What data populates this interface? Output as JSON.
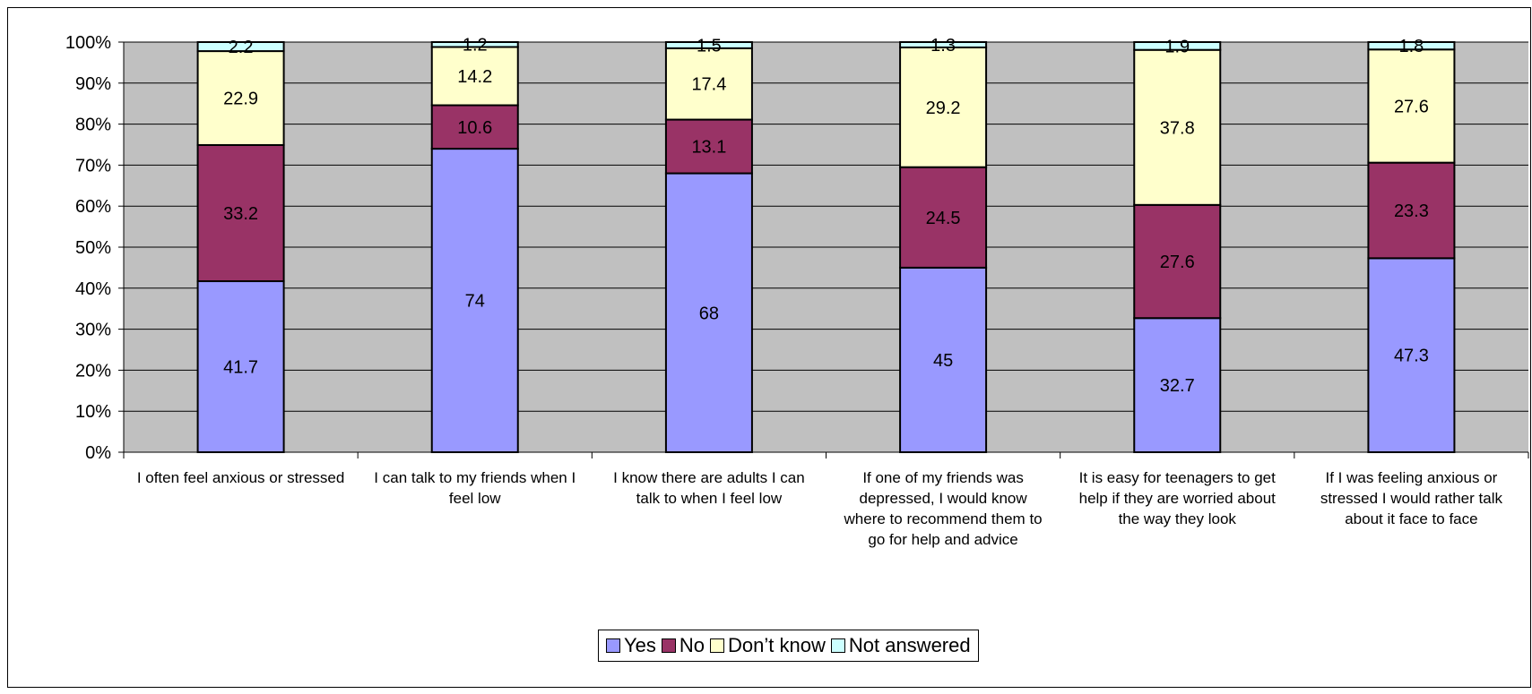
{
  "chart_data": {
    "type": "bar",
    "stacked": "percent",
    "categories": [
      "I often feel anxious or stressed",
      "I can talk to my friends when I feel low",
      "I know there are adults I can talk to when I feel low",
      "If one of my friends was depressed, I would know where to recommend them to go for help and advice",
      "It is easy for teenagers to get help if they are worried about the way they look",
      "If I was feeling anxious or stressed I would rather talk about it face to face"
    ],
    "series": [
      {
        "name": "Yes",
        "color": "#9999ff",
        "values": [
          41.7,
          74,
          68,
          45,
          32.7,
          47.3
        ]
      },
      {
        "name": "No",
        "color": "#993366",
        "values": [
          33.2,
          10.6,
          13.1,
          24.5,
          27.6,
          23.3
        ]
      },
      {
        "name": "Don’t know",
        "color": "#ffffcc",
        "values": [
          22.9,
          14.2,
          17.4,
          29.2,
          37.8,
          27.6
        ]
      },
      {
        "name": "Not answered",
        "color": "#ccffff",
        "values": [
          2.2,
          1.2,
          1.5,
          1.3,
          1.9,
          1.8
        ]
      }
    ],
    "y_ticks": [
      "0%",
      "10%",
      "20%",
      "30%",
      "40%",
      "50%",
      "60%",
      "70%",
      "80%",
      "90%",
      "100%"
    ],
    "ylim": [
      0,
      100
    ],
    "grid": true,
    "legend_position": "bottom",
    "plot_background": "#c0c0c0"
  }
}
